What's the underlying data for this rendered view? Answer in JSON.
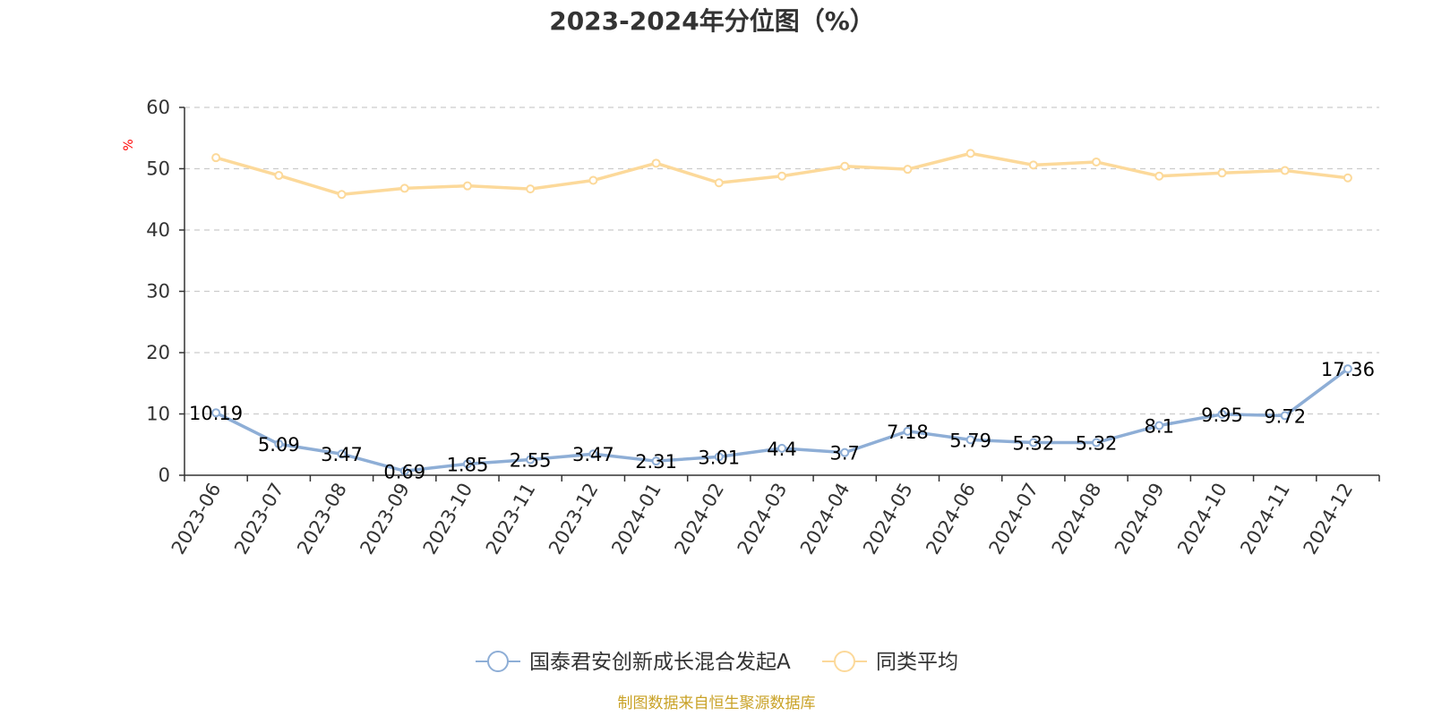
{
  "chart_data": {
    "type": "line",
    "title": "2023-2024年分位图（%）",
    "ylabel": "%",
    "ylim": [
      0,
      60
    ],
    "yticks": [
      0,
      10,
      20,
      30,
      40,
      50,
      60
    ],
    "grid": true,
    "legend_position": "bottom",
    "categories": [
      "2023-06",
      "2023-07",
      "2023-08",
      "2023-09",
      "2023-10",
      "2023-11",
      "2023-12",
      "2024-01",
      "2024-02",
      "2024-03",
      "2024-04",
      "2024-05",
      "2024-06",
      "2024-07",
      "2024-08",
      "2024-09",
      "2024-10",
      "2024-11",
      "2024-12"
    ],
    "series": [
      {
        "name": "国泰君安创新成长混合发起A",
        "color": "#8eaed6",
        "show_labels": true,
        "values": [
          10.19,
          5.09,
          3.47,
          0.69,
          1.85,
          2.55,
          3.47,
          2.31,
          3.01,
          4.4,
          3.7,
          7.18,
          5.79,
          5.32,
          5.32,
          8.1,
          9.95,
          9.72,
          17.36
        ]
      },
      {
        "name": "同类平均",
        "color": "#fcd99a",
        "show_labels": false,
        "values": [
          51.8,
          48.9,
          45.8,
          46.8,
          47.2,
          46.7,
          48.1,
          50.9,
          47.7,
          48.8,
          50.4,
          49.9,
          52.5,
          50.6,
          51.1,
          48.8,
          49.3,
          49.7,
          48.5
        ]
      }
    ],
    "source": "制图数据来自恒生聚源数据库"
  }
}
